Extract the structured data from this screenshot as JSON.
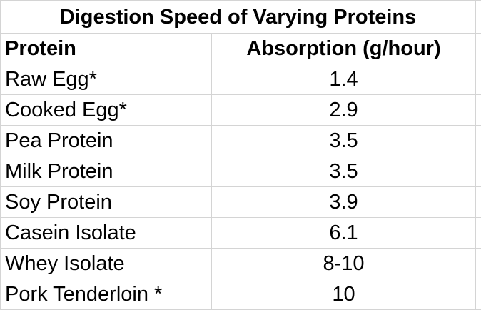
{
  "title": "Digestion Speed of Varying Proteins",
  "columns": {
    "protein": "Protein",
    "absorption": "Absorption (g/hour)"
  },
  "rows": [
    {
      "protein": "Raw Egg*",
      "absorption": "1.4"
    },
    {
      "protein": "Cooked Egg*",
      "absorption": "2.9"
    },
    {
      "protein": "Pea Protein",
      "absorption": "3.5"
    },
    {
      "protein": "Milk Protein",
      "absorption": "3.5"
    },
    {
      "protein": "Soy Protein",
      "absorption": "3.9"
    },
    {
      "protein": "Casein Isolate",
      "absorption": "6.1"
    },
    {
      "protein": "Whey Isolate",
      "absorption": "8-10"
    },
    {
      "protein": "Pork Tenderloin *",
      "absorption": "10"
    }
  ]
}
